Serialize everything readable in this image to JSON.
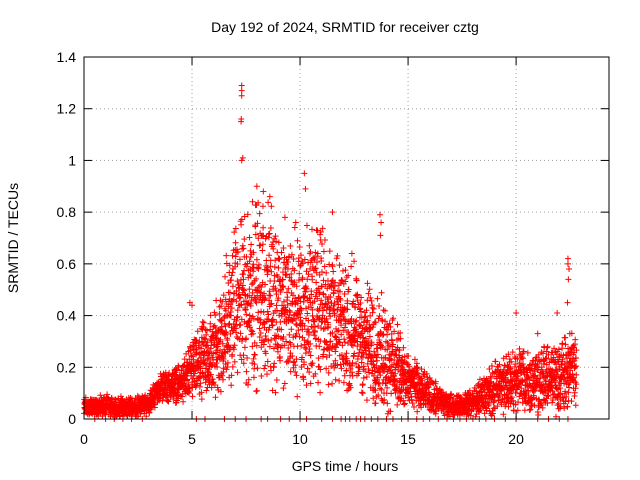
{
  "chart_data": {
    "type": "scatter",
    "title": "Day 192 of 2024, SRMTID for receiver cztg",
    "xlabel": "GPS time / hours",
    "ylabel": "SRMTID / TECUs",
    "xlim": [
      0,
      24.3
    ],
    "ylim": [
      0,
      1.4
    ],
    "xticks": [
      "0",
      "5",
      "10",
      "15",
      "20"
    ],
    "yticks": [
      "0",
      "0.2",
      "0.4",
      "0.6",
      "0.8",
      "1",
      "1.2",
      "1.4"
    ],
    "grid": true,
    "marker": "plus",
    "color": "#ff0000",
    "series": [
      {
        "name": "SRMTID",
        "envelope": [
          {
            "x": 0.0,
            "base": 0.05,
            "spread": 0.03
          },
          {
            "x": 1.0,
            "base": 0.05,
            "spread": 0.04
          },
          {
            "x": 2.0,
            "base": 0.04,
            "spread": 0.04
          },
          {
            "x": 3.0,
            "base": 0.06,
            "spread": 0.04
          },
          {
            "x": 3.5,
            "base": 0.12,
            "spread": 0.05
          },
          {
            "x": 4.5,
            "base": 0.14,
            "spread": 0.07
          },
          {
            "x": 5.0,
            "base": 0.18,
            "spread": 0.12
          },
          {
            "x": 6.0,
            "base": 0.25,
            "spread": 0.18
          },
          {
            "x": 7.0,
            "base": 0.45,
            "spread": 0.3
          },
          {
            "x": 8.0,
            "base": 0.5,
            "spread": 0.35
          },
          {
            "x": 9.0,
            "base": 0.45,
            "spread": 0.3
          },
          {
            "x": 10.0,
            "base": 0.42,
            "spread": 0.3
          },
          {
            "x": 11.0,
            "base": 0.45,
            "spread": 0.3
          },
          {
            "x": 12.0,
            "base": 0.35,
            "spread": 0.25
          },
          {
            "x": 13.0,
            "base": 0.3,
            "spread": 0.22
          },
          {
            "x": 14.0,
            "base": 0.25,
            "spread": 0.2
          },
          {
            "x": 15.0,
            "base": 0.15,
            "spread": 0.1
          },
          {
            "x": 16.0,
            "base": 0.09,
            "spread": 0.07
          },
          {
            "x": 17.0,
            "base": 0.05,
            "spread": 0.04
          },
          {
            "x": 18.0,
            "base": 0.06,
            "spread": 0.05
          },
          {
            "x": 19.0,
            "base": 0.12,
            "spread": 0.1
          },
          {
            "x": 20.0,
            "base": 0.15,
            "spread": 0.12
          },
          {
            "x": 21.0,
            "base": 0.14,
            "spread": 0.12
          },
          {
            "x": 22.0,
            "base": 0.16,
            "spread": 0.14
          },
          {
            "x": 22.8,
            "base": 0.2,
            "spread": 0.15
          }
        ],
        "points_per_hour": 160,
        "x_end": 22.8,
        "peaks": [
          {
            "x": 7.3,
            "y": 1.29
          },
          {
            "x": 7.3,
            "y": 1.27
          },
          {
            "x": 7.3,
            "y": 1.25
          },
          {
            "x": 7.28,
            "y": 1.16
          },
          {
            "x": 7.27,
            "y": 1.15
          },
          {
            "x": 7.35,
            "y": 1.01
          },
          {
            "x": 7.3,
            "y": 1.0
          },
          {
            "x": 8.0,
            "y": 0.9
          },
          {
            "x": 8.3,
            "y": 0.88
          },
          {
            "x": 8.6,
            "y": 0.86
          },
          {
            "x": 10.2,
            "y": 0.95
          },
          {
            "x": 10.25,
            "y": 0.89
          },
          {
            "x": 11.5,
            "y": 0.8
          },
          {
            "x": 13.7,
            "y": 0.79
          },
          {
            "x": 13.75,
            "y": 0.76
          },
          {
            "x": 13.72,
            "y": 0.71
          },
          {
            "x": 12.4,
            "y": 0.64
          },
          {
            "x": 12.5,
            "y": 0.61
          },
          {
            "x": 9.3,
            "y": 0.78
          },
          {
            "x": 7.8,
            "y": 0.84
          },
          {
            "x": 22.4,
            "y": 0.62
          },
          {
            "x": 22.4,
            "y": 0.6
          },
          {
            "x": 22.45,
            "y": 0.58
          },
          {
            "x": 22.42,
            "y": 0.54
          },
          {
            "x": 22.38,
            "y": 0.45
          },
          {
            "x": 20.0,
            "y": 0.41
          },
          {
            "x": 21.9,
            "y": 0.41
          },
          {
            "x": 21.0,
            "y": 0.33
          },
          {
            "x": 4.9,
            "y": 0.45
          },
          {
            "x": 5.0,
            "y": 0.44
          }
        ],
        "zero_points": [
          0.5,
          1.0,
          1.4,
          1.8,
          2.2,
          2.7,
          5.2,
          5.6,
          6.5,
          7.0,
          7.5,
          8.2,
          8.5,
          9.1,
          9.5,
          10.0,
          10.3,
          11.0,
          11.5,
          11.9,
          12.1,
          12.3,
          12.6,
          12.8,
          13.0,
          13.3,
          13.6,
          14.0,
          14.3,
          14.7,
          15.0,
          15.4,
          15.7,
          16.0,
          16.4,
          16.8,
          17.1,
          17.4,
          17.7,
          18.0,
          18.3,
          18.6,
          19.0,
          19.5,
          20.0,
          21.0,
          21.5,
          22.0,
          22.4
        ]
      }
    ]
  }
}
